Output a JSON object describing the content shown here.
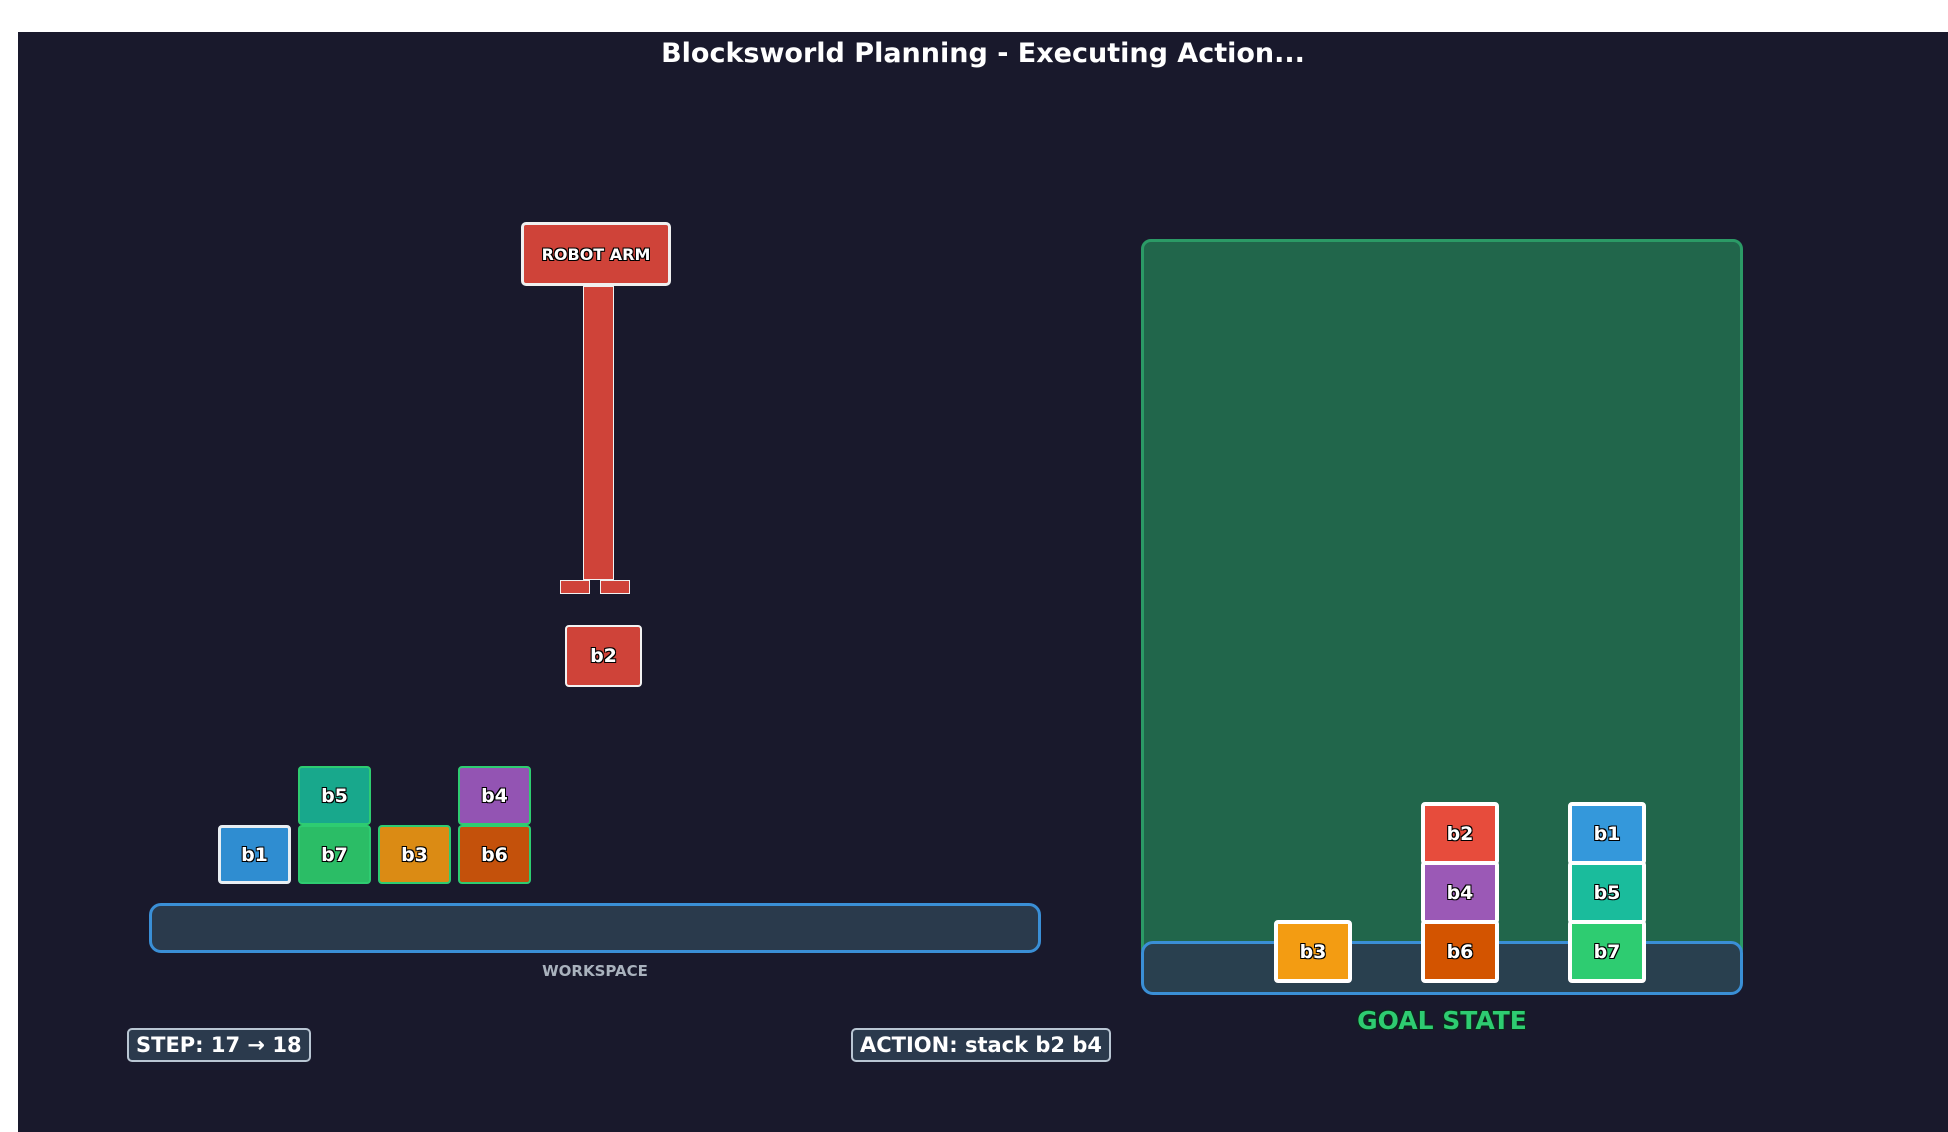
{
  "title": "Blocksworld Planning - Executing Action...",
  "workspace": {
    "label": "WORKSPACE",
    "stacks": [
      {
        "blocks": [
          {
            "name": "b1",
            "color": "#2f8dd1"
          }
        ]
      },
      {
        "blocks": [
          {
            "name": "b7",
            "color": "#2bbd66"
          },
          {
            "name": "b5",
            "color": "#18a88c"
          }
        ]
      },
      {
        "blocks": [
          {
            "name": "b3",
            "color": "#db8b14"
          }
        ]
      },
      {
        "blocks": [
          {
            "name": "b6",
            "color": "#c4510b"
          },
          {
            "name": "b4",
            "color": "#9354b3"
          }
        ]
      }
    ]
  },
  "robot_arm": {
    "label": "ROBOT ARM",
    "color": "#cf4339",
    "holding": {
      "name": "b2",
      "color": "#cf4339"
    }
  },
  "goal": {
    "label": "GOAL STATE",
    "stacks": [
      {
        "blocks": [
          {
            "name": "b3",
            "color": "#f39c12"
          }
        ]
      },
      {
        "blocks": [
          {
            "name": "b6",
            "color": "#d35400"
          },
          {
            "name": "b4",
            "color": "#9b59b6"
          },
          {
            "name": "b2",
            "color": "#e74c3c"
          }
        ]
      },
      {
        "blocks": [
          {
            "name": "b7",
            "color": "#2ecc71"
          },
          {
            "name": "b5",
            "color": "#1abc9c"
          },
          {
            "name": "b1",
            "color": "#3498db"
          }
        ]
      }
    ]
  },
  "status": {
    "step": "STEP: 17 → 18",
    "action": "ACTION: stack b2 b4"
  }
}
